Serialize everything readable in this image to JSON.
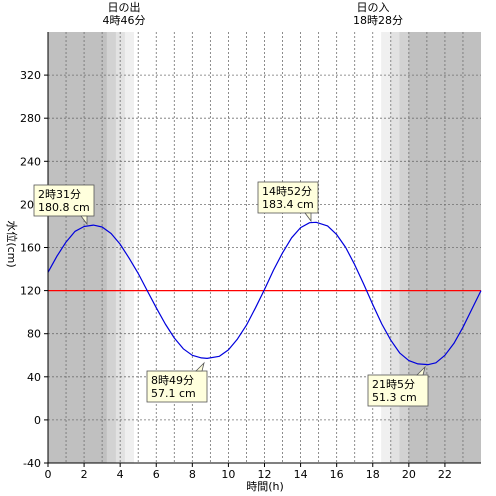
{
  "chart_data": {
    "type": "line",
    "xlabel": "時間(h)",
    "ylabel": "水位(cm)",
    "xlim": [
      0,
      24
    ],
    "ylim": [
      -40,
      360
    ],
    "x_ticks": [
      0,
      2,
      4,
      6,
      8,
      10,
      12,
      14,
      16,
      18,
      20,
      22
    ],
    "y_ticks": [
      -40,
      0,
      40,
      80,
      120,
      160,
      200,
      240,
      280,
      320
    ],
    "grid": true,
    "reference_line": {
      "y": 120,
      "color": "#ff0000"
    },
    "line_color": "#0000dd",
    "series": [
      {
        "values_x": [
          0,
          0.5,
          1,
          1.5,
          2,
          2.5167,
          3,
          3.5,
          4,
          4.5,
          5,
          5.5,
          6,
          6.5,
          7,
          7.5,
          8,
          8.5,
          8.8167,
          9.5,
          10,
          10.5,
          11,
          11.5,
          12,
          12.5,
          13,
          13.5,
          14,
          14.5,
          14.8667,
          15.5,
          16,
          16.5,
          17,
          17.5,
          18,
          18.5,
          19,
          19.5,
          20,
          20.5,
          21.0833,
          21.5,
          22,
          22.5,
          23,
          23.5,
          24
        ],
        "values_y": [
          137,
          152,
          165,
          175,
          179.5,
          180.8,
          179,
          173,
          163,
          150,
          136,
          120,
          104,
          89,
          76,
          66,
          60,
          57.5,
          57.1,
          59,
          65,
          75,
          88,
          104,
          121,
          139,
          155,
          169,
          178.5,
          183,
          183.4,
          180,
          172,
          160,
          144,
          126,
          107,
          89,
          74,
          62,
          55,
          52,
          51.3,
          53,
          60,
          71,
          86,
          103,
          120
        ]
      }
    ],
    "annotations": [
      {
        "time": "2時31分",
        "level": "180.8 cm",
        "x": 2.5167,
        "y": 180.8
      },
      {
        "time": "14時52分",
        "level": "183.4 cm",
        "x": 14.8667,
        "y": 183.4
      },
      {
        "time": "8時49分",
        "level": "57.1 cm",
        "x": 8.8167,
        "y": 57.1
      },
      {
        "time": "21時5分",
        "level": "51.3 cm",
        "x": 21.0833,
        "y": 51.3
      }
    ],
    "sunrise": {
      "label": "日の出",
      "time": "4時46分",
      "hour": 4.7667
    },
    "sunset": {
      "label": "日の入",
      "time": "18時28分",
      "hour": 18.4667
    },
    "shade_colors": [
      "#c0c0c0",
      "#d2d2d2",
      "#e2e2e2",
      "#f0f0f0",
      "#ffffff"
    ]
  }
}
